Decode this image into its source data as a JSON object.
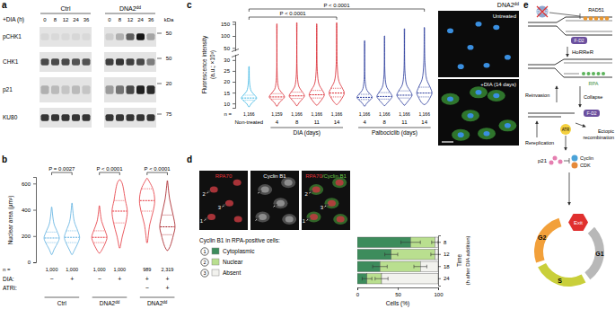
{
  "panel_labels": [
    "a",
    "b",
    "c",
    "d",
    "e"
  ],
  "blot": {
    "treatment_label": "+DIA (h)",
    "groups": [
      {
        "label": "Ctrl",
        "lanes": [
          "0",
          "8",
          "12",
          "24",
          "36"
        ]
      },
      {
        "label": {
          "base": "DNA2",
          "sup": "dd"
        },
        "lanes": [
          "0",
          "8",
          "12",
          "24",
          "36"
        ]
      }
    ],
    "unit": "kDa",
    "rows": [
      {
        "label": "pCHK1",
        "kda": 50,
        "intensity": [
          0.06,
          0.05,
          0.05,
          0.06,
          0.05,
          0.1,
          0.25,
          0.65,
          1.0,
          0.3
        ]
      },
      {
        "label": "CHK1",
        "kda": 50,
        "intensity": [
          0.75,
          0.75,
          0.75,
          0.7,
          0.7,
          0.8,
          0.85,
          0.8,
          0.75,
          0.5
        ]
      },
      {
        "label": "p21",
        "kda": 20,
        "intensity": [
          0.25,
          0.2,
          0.15,
          0.2,
          0.15,
          0.35,
          0.55,
          0.75,
          0.95,
          0.9
        ]
      },
      {
        "label": "KU80",
        "kda": 75,
        "intensity": [
          0.85,
          0.85,
          0.85,
          0.85,
          0.85,
          0.85,
          0.85,
          0.85,
          0.85,
          0.85
        ]
      }
    ]
  },
  "chart_data": [
    {
      "type": "violin",
      "y_label": "Nuclear area (µm²)",
      "ylim": [
        0,
        650
      ],
      "yticks": [
        0,
        200,
        400,
        600
      ],
      "violins": [
        {
          "color": "#5aaee0",
          "min": 60,
          "q1": 150,
          "median": 185,
          "q3": 230,
          "max": 420
        },
        {
          "color": "#5aaee0",
          "min": 60,
          "q1": 150,
          "median": 190,
          "q3": 240,
          "max": 450
        },
        {
          "color": "#e5333b",
          "min": 70,
          "q1": 150,
          "median": 190,
          "q3": 240,
          "max": 430
        },
        {
          "color": "#e5333b",
          "min": 110,
          "q1": 300,
          "median": 390,
          "q3": 470,
          "max": 630
        },
        {
          "color": "#e5333b",
          "min": 150,
          "q1": 390,
          "median": 470,
          "q3": 560,
          "max": 640
        },
        {
          "color": "#a3161d",
          "min": 90,
          "q1": 210,
          "median": 270,
          "q3": 360,
          "max": 620
        }
      ],
      "n_label": "n =",
      "n": [
        "1,000",
        "1,000",
        "1,000",
        "1,000",
        "989",
        "2,319"
      ],
      "conditions": [
        {
          "label": "DIA:",
          "values": [
            "−",
            "+",
            "−",
            "+",
            "+",
            "+"
          ]
        },
        {
          "label": "ATRi:",
          "values": [
            null,
            null,
            null,
            null,
            "−",
            "+"
          ]
        }
      ],
      "groups": [
        {
          "label": "Ctrl",
          "members": 2
        },
        {
          "label": {
            "base": "DNA2",
            "sup": "dd"
          },
          "members": 2
        },
        {
          "label": {
            "base": "DNA2",
            "sup": "dd"
          },
          "members": 2
        }
      ],
      "comparisons": [
        {
          "from": 0,
          "to": 1,
          "label": "P = 0.0027"
        },
        {
          "from": 2,
          "to": 3,
          "label": "P < 0.0001"
        },
        {
          "from": 4,
          "to": 5,
          "label": "P < 0.0001"
        }
      ]
    },
    {
      "type": "violin",
      "y_label": [
        "Fluorescence intensity",
        "(a.u.; ×10³)"
      ],
      "ylim": [
        8,
        160
      ],
      "axis_break": [
        32,
        40
      ],
      "yticks": [
        10,
        15,
        20,
        25,
        30,
        50,
        100,
        150
      ],
      "categories": [
        "Non-treated",
        "4",
        "8",
        "11",
        "14",
        "4",
        "8",
        "11",
        "14"
      ],
      "groups": [
        {
          "label": null,
          "members": 1
        },
        {
          "label": "DIA (days)",
          "members": 4
        },
        {
          "label": "Palbociclib (days)",
          "members": 4
        }
      ],
      "violins": [
        {
          "color": "#3cb6e3",
          "min": 8.5,
          "q1": 11.5,
          "median": 12.5,
          "q3": 13.8,
          "max": 27
        },
        {
          "color": "#d9262e",
          "min": 8.8,
          "q1": 12,
          "median": 13,
          "q3": 14.5,
          "max": 150
        },
        {
          "color": "#d9262e",
          "min": 9,
          "q1": 12.3,
          "median": 13.5,
          "q3": 15.2,
          "max": 155
        },
        {
          "color": "#d9262e",
          "min": 9.2,
          "q1": 12.5,
          "median": 14,
          "q3": 16,
          "max": 150
        },
        {
          "color": "#d9262e",
          "min": 9.5,
          "q1": 13,
          "median": 14.8,
          "q3": 17,
          "max": 155
        },
        {
          "color": "#27399b",
          "min": 8.8,
          "q1": 11.8,
          "median": 12.8,
          "q3": 14.2,
          "max": 80
        },
        {
          "color": "#27399b",
          "min": 9,
          "q1": 12,
          "median": 13.2,
          "q3": 15,
          "max": 100
        },
        {
          "color": "#27399b",
          "min": 9.2,
          "q1": 12.5,
          "median": 13.8,
          "q3": 15.8,
          "max": 130
        },
        {
          "color": "#27399b",
          "min": 9.5,
          "q1": 13,
          "median": 14.8,
          "q3": 17.5,
          "max": 135
        }
      ],
      "n_label": "n =",
      "n": [
        "1,166",
        "1,159",
        "1,166",
        "1,166",
        "1,166",
        "1,166",
        "1,166",
        "1,166",
        "1,166"
      ],
      "comparisons": [
        {
          "from": 0,
          "to": 4,
          "label": "P < 0.0001"
        },
        {
          "from": 0,
          "to": 8,
          "label": "P < 0.0001"
        }
      ]
    },
    {
      "type": "bar",
      "orientation": "horizontal",
      "stacked": true,
      "categories": [
        "8",
        "12",
        "18",
        "24"
      ],
      "xlim": [
        0,
        100
      ],
      "xticks": [
        0,
        50,
        100
      ],
      "x_label": "Cells (%)",
      "y_label": [
        "Time",
        "(h after DIA addition)"
      ],
      "legend_title": "Cyclin B1 in RPA-positive cells:",
      "legend_ids": [
        "1",
        "2",
        "3"
      ],
      "series": [
        {
          "name": "Cytoplasmic",
          "color": "#3d8c5c",
          "values": [
            66,
            42,
            28,
            12
          ],
          "errors": [
            12,
            8,
            9,
            6
          ]
        },
        {
          "name": "Nuclear",
          "color": "#b9df8f",
          "values": [
            30,
            54,
            50,
            18
          ],
          "errors": [
            4,
            5,
            8,
            8
          ]
        },
        {
          "name": "Absent",
          "color": "#f2f2ee",
          "values": [
            4,
            4,
            22,
            70
          ]
        }
      ]
    }
  ],
  "images_c": {
    "title": {
      "base": "DNA2",
      "sup": "dd"
    },
    "panels": [
      "Untreated",
      "+DIA (14 days)"
    ]
  },
  "images_d": {
    "labels": [
      {
        "text": "RPA70",
        "color": "#e8343c"
      },
      {
        "text": "Cyclin B1",
        "color": "#ffffff"
      }
    ],
    "merged": [
      {
        "text": "RPA70",
        "color": "#e8343c"
      },
      {
        "text": "/Cyclin B1",
        "color": "#6ccc4a"
      }
    ],
    "arrows": [
      "2",
      "3",
      "1"
    ]
  },
  "diagram": {
    "dna2": "DNA2",
    "rad51": "RAD51",
    "fd2": [
      "F-D2",
      "F-D2"
    ],
    "horrer": "HoRReR",
    "rpa": "RPA",
    "reinvasion": "Reinvasion",
    "collapse": "Collapse",
    "ectopic": [
      "Ectopic",
      "recombination"
    ],
    "rereplication": "Rereplication",
    "atr": "ATR",
    "p21": "p21",
    "cyclin": "Cyclin",
    "cdk": "CDK",
    "exit": "Exit",
    "phases": {
      "g2": "G2",
      "g1": "G1",
      "s": "S"
    }
  }
}
